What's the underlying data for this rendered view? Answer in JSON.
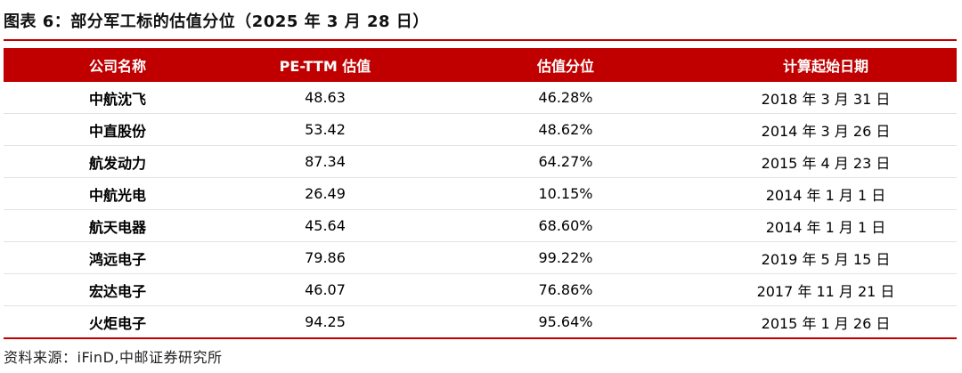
{
  "title": "图表 6：部分军工标的估值分位（2025 年 3 月 28 日）",
  "table": {
    "headers": [
      "公司名称",
      "PE-TTM 估值",
      "估值分位",
      "计算起始日期"
    ],
    "rows": [
      [
        "中航沈飞",
        "48.63",
        "46.28%",
        "2018 年 3 月 31 日"
      ],
      [
        "中直股份",
        "53.42",
        "48.62%",
        "2014 年 3 月 26 日"
      ],
      [
        "航发动力",
        "87.34",
        "64.27%",
        "2015 年 4 月 23 日"
      ],
      [
        "中航光电",
        "26.49",
        "10.15%",
        "2014 年 1 月 1 日"
      ],
      [
        "航天电器",
        "45.64",
        "68.60%",
        "2014 年 1 月 1 日"
      ],
      [
        "鸿远电子",
        "79.86",
        "99.22%",
        "2019 年 5 月 15 日"
      ],
      [
        "宏达电子",
        "46.07",
        "76.86%",
        "2017 年 11 月 21 日"
      ],
      [
        "火炬电子",
        "94.25",
        "95.64%",
        "2015 年 1 月 26 日"
      ]
    ]
  },
  "source": "资料来源：iFinD,中邮证券研究所",
  "colors": {
    "accent": "#c00000"
  }
}
